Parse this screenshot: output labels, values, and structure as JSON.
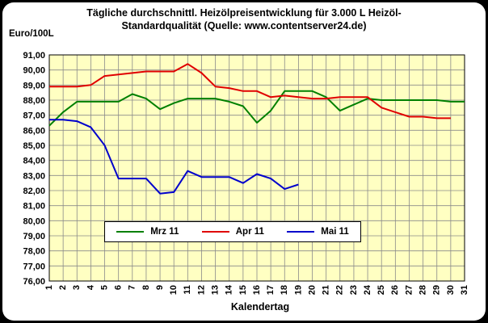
{
  "chart_data": {
    "type": "line",
    "title": "Tägliche durchschnittl. Heizölpreisentwicklung für 3.000 L Heizöl-",
    "subtitle": "Standardqualität (Quelle: www.contentserver24.de)",
    "ylabel": "Euro/100L",
    "xlabel": "Kalendertag",
    "ylim": [
      76,
      91
    ],
    "xlim": [
      1,
      31
    ],
    "grid": true,
    "legend_position": "bottom-left",
    "plot_background": "#ffffc2",
    "x": [
      1,
      2,
      3,
      4,
      5,
      6,
      7,
      8,
      9,
      10,
      11,
      12,
      13,
      14,
      15,
      16,
      17,
      18,
      19,
      20,
      21,
      22,
      23,
      24,
      25,
      26,
      27,
      28,
      29,
      30,
      31
    ],
    "x_tick_labels": [
      "1",
      "2",
      "3",
      "4",
      "5",
      "6",
      "7",
      "8",
      "9",
      "10",
      "11",
      "12",
      "13",
      "14",
      "15",
      "16",
      "17",
      "18",
      "19",
      "20",
      "21",
      "22",
      "23",
      "24",
      "25",
      "26",
      "27",
      "28",
      "29",
      "30",
      "31"
    ],
    "y_tick_labels": [
      "76,00",
      "77,00",
      "78,00",
      "79,00",
      "80,00",
      "81,00",
      "82,00",
      "83,00",
      "84,00",
      "85,00",
      "86,00",
      "87,00",
      "88,00",
      "89,00",
      "90,00",
      "91,00"
    ],
    "series": [
      {
        "name": "Mrz 11",
        "color": "#008000",
        "values": [
          86.3,
          87.2,
          87.9,
          87.9,
          87.9,
          87.9,
          88.4,
          88.1,
          87.4,
          87.8,
          88.1,
          88.1,
          88.1,
          87.9,
          87.6,
          86.5,
          87.3,
          88.6,
          88.6,
          88.6,
          88.2,
          87.3,
          87.7,
          88.1,
          88.0,
          88.0,
          88.0,
          88.0,
          88.0,
          87.9,
          87.9
        ]
      },
      {
        "name": "Apr 11",
        "color": "#e00000",
        "values": [
          88.9,
          88.9,
          88.9,
          89.0,
          89.6,
          89.7,
          89.8,
          89.9,
          89.9,
          89.9,
          90.4,
          89.8,
          88.9,
          88.8,
          88.6,
          88.6,
          88.2,
          88.3,
          88.2,
          88.1,
          88.1,
          88.2,
          88.2,
          88.2,
          87.5,
          87.2,
          86.9,
          86.9,
          86.8,
          86.8,
          null
        ]
      },
      {
        "name": "Mai 11",
        "color": "#0000cc",
        "values": [
          86.7,
          86.7,
          86.6,
          86.2,
          85.0,
          82.8,
          82.8,
          82.8,
          81.8,
          81.9,
          83.3,
          82.9,
          82.9,
          82.9,
          82.5,
          83.1,
          82.8,
          82.1,
          82.4,
          null,
          null,
          null,
          null,
          null,
          null,
          null,
          null,
          null,
          null,
          null,
          null
        ]
      }
    ]
  }
}
